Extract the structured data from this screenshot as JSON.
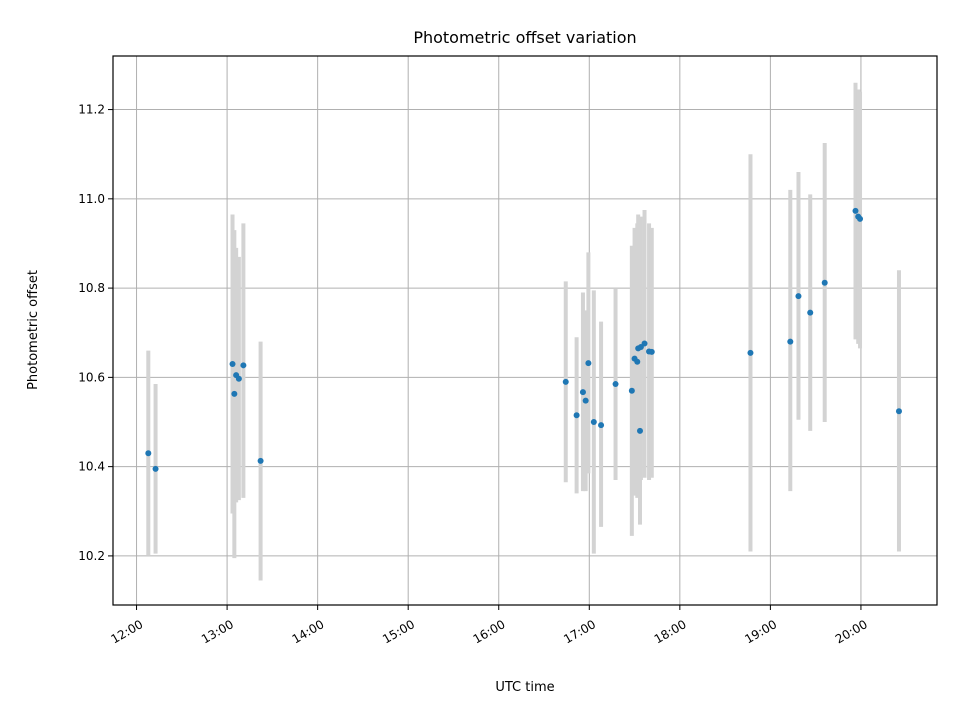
{
  "chart_data": {
    "type": "scatter",
    "title": "Photometric offset variation",
    "xlabel": "UTC time",
    "ylabel": "Photometric offset",
    "grid": true,
    "xlim": [
      11.74,
      20.84
    ],
    "ylim": [
      10.09,
      11.32
    ],
    "x_ticks": [
      12,
      13,
      14,
      15,
      16,
      17,
      18,
      19,
      20
    ],
    "x_tick_labels": [
      "12:00",
      "13:00",
      "14:00",
      "15:00",
      "16:00",
      "17:00",
      "18:00",
      "19:00",
      "20:00"
    ],
    "y_ticks": [
      10.2,
      10.4,
      10.6,
      10.8,
      11.0,
      11.2
    ],
    "y_tick_labels": [
      "10.2",
      "10.4",
      "10.6",
      "10.8",
      "11.0",
      "11.2"
    ],
    "colors": {
      "points": "#1f77b4",
      "errorbars": "#d3d3d3"
    },
    "points": [
      {
        "t": 12.13,
        "y": 10.43,
        "lo": 10.2,
        "hi": 10.66
      },
      {
        "t": 12.21,
        "y": 10.395,
        "lo": 10.205,
        "hi": 10.585
      },
      {
        "t": 13.06,
        "y": 10.63,
        "lo": 10.295,
        "hi": 10.965
      },
      {
        "t": 13.08,
        "y": 10.563,
        "lo": 10.195,
        "hi": 10.93
      },
      {
        "t": 13.1,
        "y": 10.605,
        "lo": 10.32,
        "hi": 10.89
      },
      {
        "t": 13.13,
        "y": 10.597,
        "lo": 10.325,
        "hi": 10.87
      },
      {
        "t": 13.18,
        "y": 10.627,
        "lo": 10.33,
        "hi": 10.945
      },
      {
        "t": 13.37,
        "y": 10.413,
        "lo": 10.145,
        "hi": 10.68
      },
      {
        "t": 16.74,
        "y": 10.59,
        "lo": 10.365,
        "hi": 10.815
      },
      {
        "t": 16.86,
        "y": 10.515,
        "lo": 10.34,
        "hi": 10.69
      },
      {
        "t": 16.93,
        "y": 10.567,
        "lo": 10.345,
        "hi": 10.79
      },
      {
        "t": 16.96,
        "y": 10.548,
        "lo": 10.345,
        "hi": 10.75
      },
      {
        "t": 16.99,
        "y": 10.632,
        "lo": 10.385,
        "hi": 10.88
      },
      {
        "t": 17.05,
        "y": 10.5,
        "lo": 10.205,
        "hi": 10.795
      },
      {
        "t": 17.13,
        "y": 10.493,
        "lo": 10.265,
        "hi": 10.725
      },
      {
        "t": 17.29,
        "y": 10.585,
        "lo": 10.37,
        "hi": 10.8
      },
      {
        "t": 17.47,
        "y": 10.57,
        "lo": 10.245,
        "hi": 10.895
      },
      {
        "t": 17.5,
        "y": 10.642,
        "lo": 10.335,
        "hi": 10.935
      },
      {
        "t": 17.53,
        "y": 10.635,
        "lo": 10.33,
        "hi": 10.945
      },
      {
        "t": 17.54,
        "y": 10.665,
        "lo": 10.365,
        "hi": 10.965
      },
      {
        "t": 17.56,
        "y": 10.48,
        "lo": 10.27,
        "hi": 10.7
      },
      {
        "t": 17.57,
        "y": 10.668,
        "lo": 10.37,
        "hi": 10.96
      },
      {
        "t": 17.61,
        "y": 10.676,
        "lo": 10.375,
        "hi": 10.975
      },
      {
        "t": 17.66,
        "y": 10.658,
        "lo": 10.37,
        "hi": 10.945
      },
      {
        "t": 17.69,
        "y": 10.657,
        "lo": 10.375,
        "hi": 10.935
      },
      {
        "t": 18.78,
        "y": 10.655,
        "lo": 10.21,
        "hi": 11.1
      },
      {
        "t": 19.22,
        "y": 10.68,
        "lo": 10.345,
        "hi": 11.02
      },
      {
        "t": 19.31,
        "y": 10.782,
        "lo": 10.505,
        "hi": 11.06
      },
      {
        "t": 19.44,
        "y": 10.745,
        "lo": 10.48,
        "hi": 11.01
      },
      {
        "t": 19.6,
        "y": 10.812,
        "lo": 10.5,
        "hi": 11.125
      },
      {
        "t": 19.94,
        "y": 10.973,
        "lo": 10.685,
        "hi": 11.26
      },
      {
        "t": 19.97,
        "y": 10.96,
        "lo": 10.675,
        "hi": 11.245
      },
      {
        "t": 19.99,
        "y": 10.955,
        "lo": 10.665,
        "hi": 11.24
      },
      {
        "t": 20.42,
        "y": 10.524,
        "lo": 10.21,
        "hi": 10.84
      }
    ]
  }
}
